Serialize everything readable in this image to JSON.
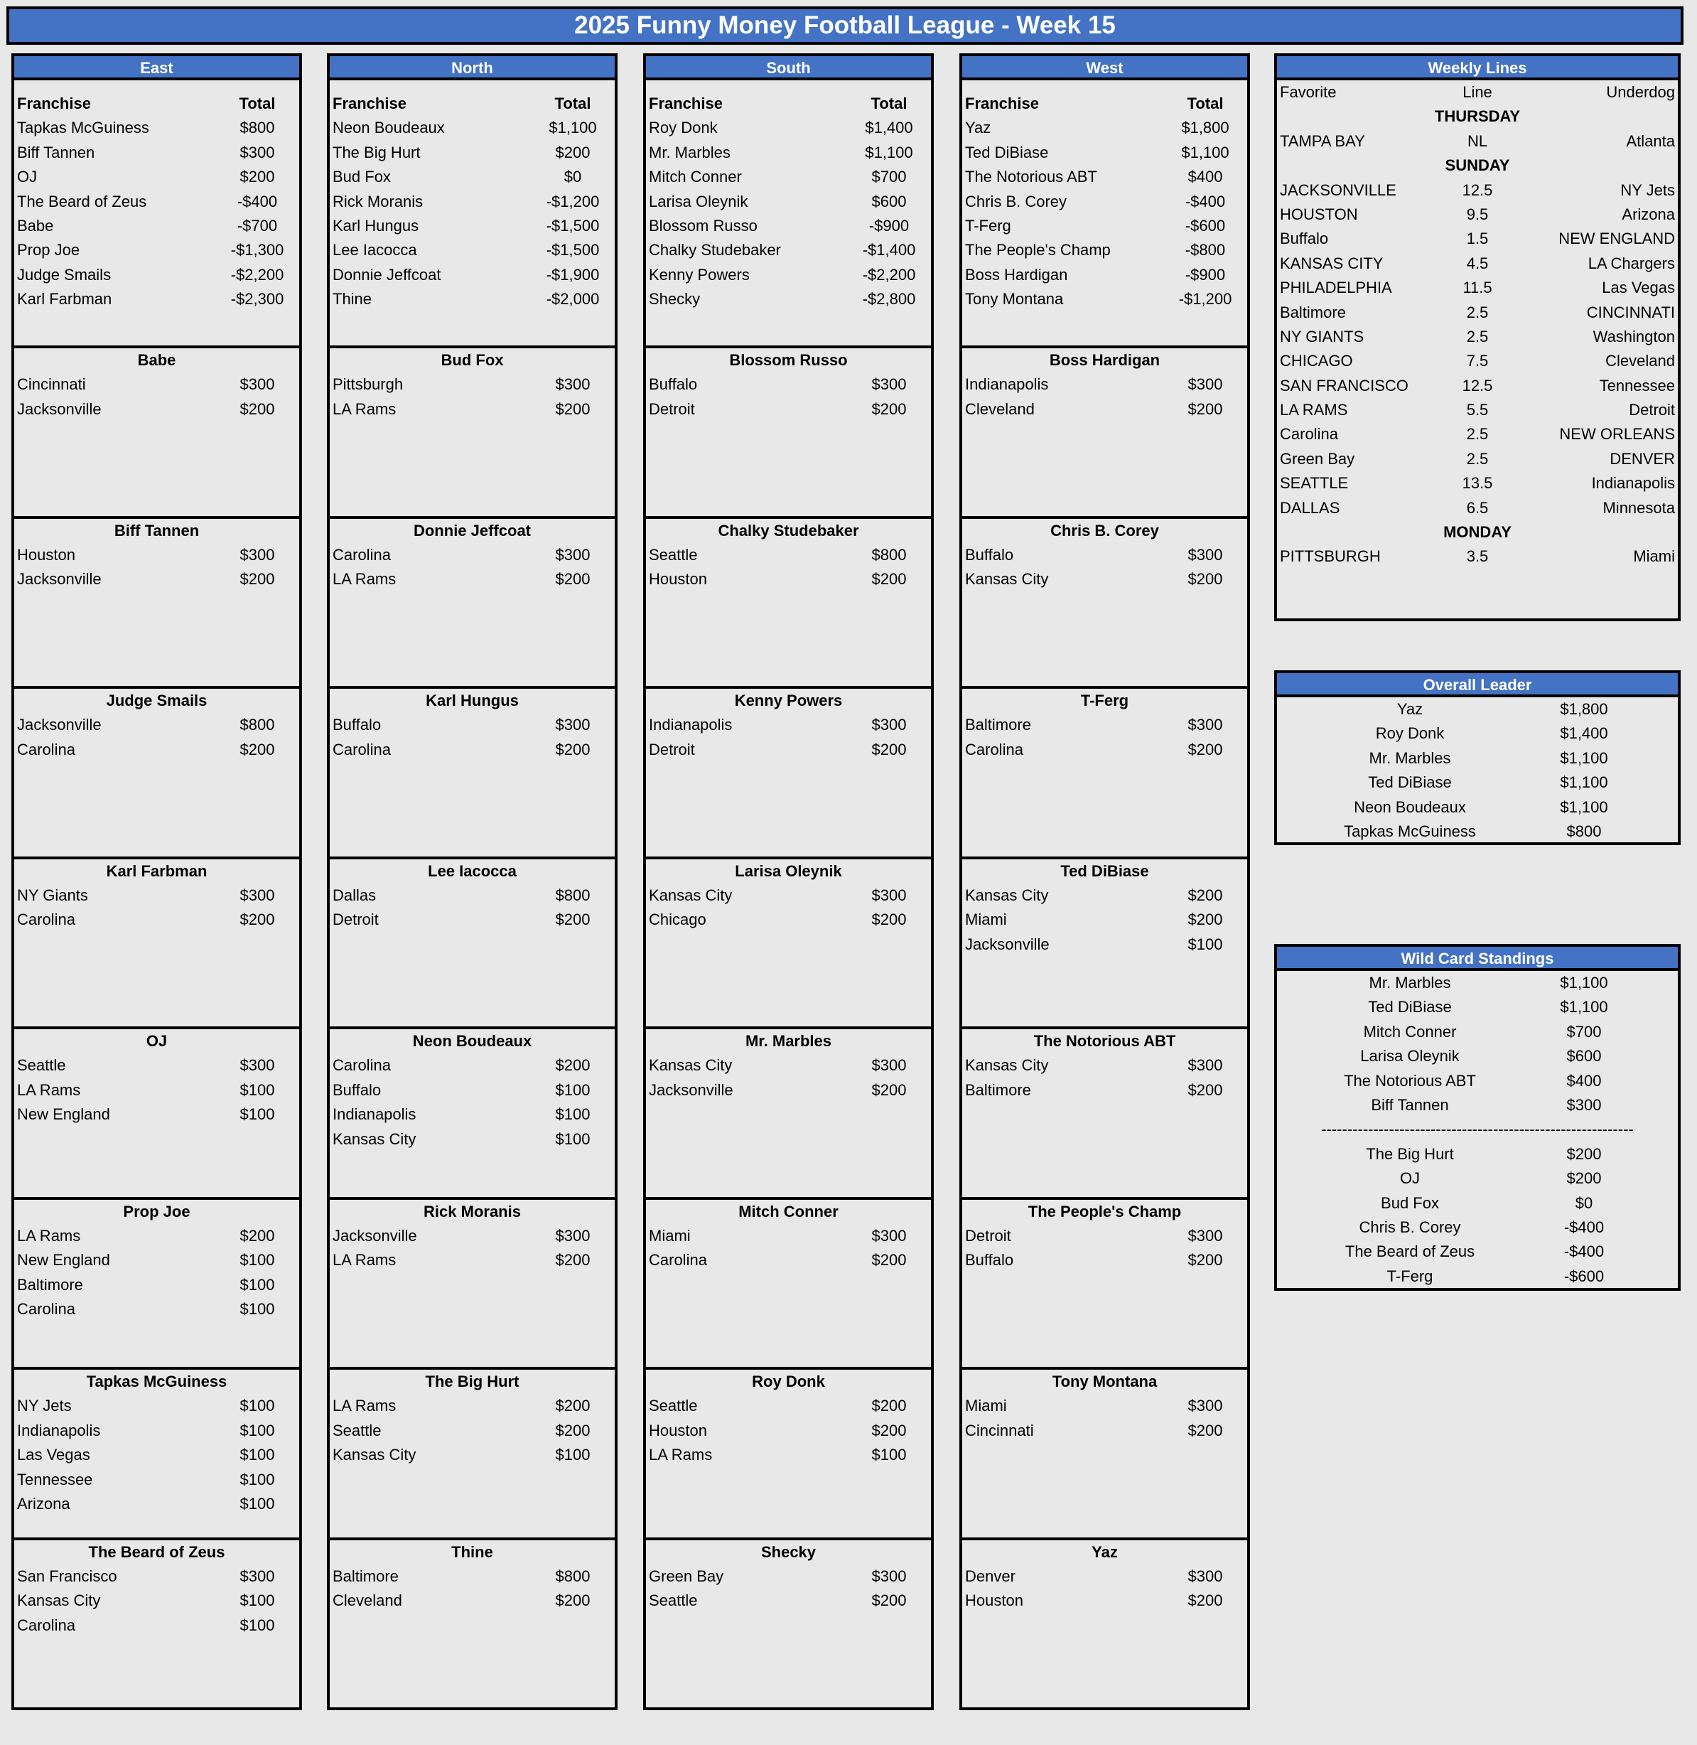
{
  "title": "2025 Funny Money Football League - Week 15",
  "colors": {
    "header_blue": "#4472c4",
    "background": "#e8e8e8",
    "border": "#000000"
  },
  "standings_headers": {
    "franchise": "Franchise",
    "total": "Total"
  },
  "divisions": [
    {
      "name": "East",
      "standings": [
        [
          "Tapkas McGuiness",
          "$800"
        ],
        [
          "Biff Tannen",
          "$300"
        ],
        [
          "OJ",
          "$200"
        ],
        [
          "The Beard of Zeus",
          "-$400"
        ],
        [
          "Babe",
          "-$700"
        ],
        [
          "Prop Joe",
          "-$1,300"
        ],
        [
          "Judge Smails",
          "-$2,200"
        ],
        [
          "Karl Farbman",
          "-$2,300"
        ]
      ],
      "teams": [
        {
          "name": "Babe",
          "picks": [
            [
              "Cincinnati",
              "$300"
            ],
            [
              "Jacksonville",
              "$200"
            ]
          ]
        },
        {
          "name": "Biff Tannen",
          "picks": [
            [
              "Houston",
              "$300"
            ],
            [
              "Jacksonville",
              "$200"
            ]
          ]
        },
        {
          "name": "Judge Smails",
          "picks": [
            [
              "Jacksonville",
              "$800"
            ],
            [
              "Carolina",
              "$200"
            ]
          ]
        },
        {
          "name": "Karl Farbman",
          "picks": [
            [
              "NY Giants",
              "$300"
            ],
            [
              "Carolina",
              "$200"
            ]
          ]
        },
        {
          "name": "OJ",
          "picks": [
            [
              "Seattle",
              "$300"
            ],
            [
              "LA Rams",
              "$100"
            ],
            [
              "New England",
              "$100"
            ]
          ]
        },
        {
          "name": "Prop Joe",
          "picks": [
            [
              "LA Rams",
              "$200"
            ],
            [
              "New England",
              "$100"
            ],
            [
              "Baltimore",
              "$100"
            ],
            [
              "Carolina",
              "$100"
            ]
          ]
        },
        {
          "name": "Tapkas McGuiness",
          "picks": [
            [
              "NY Jets",
              "$100"
            ],
            [
              "Indianapolis",
              "$100"
            ],
            [
              "Las Vegas",
              "$100"
            ],
            [
              "Tennessee",
              "$100"
            ],
            [
              "Arizona",
              "$100"
            ]
          ]
        },
        {
          "name": "The Beard of Zeus",
          "picks": [
            [
              "San Francisco",
              "$300"
            ],
            [
              "Kansas City",
              "$100"
            ],
            [
              "Carolina",
              "$100"
            ]
          ]
        }
      ]
    },
    {
      "name": "North",
      "standings": [
        [
          "Neon Boudeaux",
          "$1,100"
        ],
        [
          "The Big Hurt",
          "$200"
        ],
        [
          "Bud Fox",
          "$0"
        ],
        [
          "Rick Moranis",
          "-$1,200"
        ],
        [
          "Karl Hungus",
          "-$1,500"
        ],
        [
          "Lee Iacocca",
          "-$1,500"
        ],
        [
          "Donnie Jeffcoat",
          "-$1,900"
        ],
        [
          "Thine",
          "-$2,000"
        ]
      ],
      "teams": [
        {
          "name": "Bud Fox",
          "picks": [
            [
              "Pittsburgh",
              "$300"
            ],
            [
              "LA Rams",
              "$200"
            ]
          ]
        },
        {
          "name": "Donnie Jeffcoat",
          "picks": [
            [
              "Carolina",
              "$300"
            ],
            [
              "LA Rams",
              "$200"
            ]
          ]
        },
        {
          "name": "Karl Hungus",
          "picks": [
            [
              "Buffalo",
              "$300"
            ],
            [
              "Carolina",
              "$200"
            ]
          ]
        },
        {
          "name": "Lee Iacocca",
          "picks": [
            [
              "Dallas",
              "$800"
            ],
            [
              "Detroit",
              "$200"
            ]
          ]
        },
        {
          "name": "Neon Boudeaux",
          "picks": [
            [
              "Carolina",
              "$200"
            ],
            [
              "Buffalo",
              "$100"
            ],
            [
              "Indianapolis",
              "$100"
            ],
            [
              "Kansas City",
              "$100"
            ]
          ]
        },
        {
          "name": "Rick Moranis",
          "picks": [
            [
              "Jacksonville",
              "$300"
            ],
            [
              "LA Rams",
              "$200"
            ]
          ]
        },
        {
          "name": "The Big Hurt",
          "picks": [
            [
              "LA Rams",
              "$200"
            ],
            [
              "Seattle",
              "$200"
            ],
            [
              "Kansas City",
              "$100"
            ]
          ]
        },
        {
          "name": "Thine",
          "picks": [
            [
              "Baltimore",
              "$800"
            ],
            [
              "Cleveland",
              "$200"
            ]
          ]
        }
      ]
    },
    {
      "name": "South",
      "standings": [
        [
          "Roy Donk",
          "$1,400"
        ],
        [
          "Mr. Marbles",
          "$1,100"
        ],
        [
          "Mitch Conner",
          "$700"
        ],
        [
          "Larisa Oleynik",
          "$600"
        ],
        [
          "Blossom Russo",
          "-$900"
        ],
        [
          "Chalky Studebaker",
          "-$1,400"
        ],
        [
          "Kenny Powers",
          "-$2,200"
        ],
        [
          "Shecky",
          "-$2,800"
        ]
      ],
      "teams": [
        {
          "name": "Blossom Russo",
          "picks": [
            [
              "Buffalo",
              "$300"
            ],
            [
              "Detroit",
              "$200"
            ]
          ]
        },
        {
          "name": "Chalky Studebaker",
          "picks": [
            [
              "Seattle",
              "$800"
            ],
            [
              "Houston",
              "$200"
            ]
          ]
        },
        {
          "name": "Kenny Powers",
          "picks": [
            [
              "Indianapolis",
              "$300"
            ],
            [
              "Detroit",
              "$200"
            ]
          ]
        },
        {
          "name": "Larisa Oleynik",
          "picks": [
            [
              "Kansas City",
              "$300"
            ],
            [
              "Chicago",
              "$200"
            ]
          ]
        },
        {
          "name": "Mr. Marbles",
          "picks": [
            [
              "Kansas City",
              "$300"
            ],
            [
              "Jacksonville",
              "$200"
            ]
          ]
        },
        {
          "name": "Mitch Conner",
          "picks": [
            [
              "Miami",
              "$300"
            ],
            [
              "Carolina",
              "$200"
            ]
          ]
        },
        {
          "name": "Roy Donk",
          "picks": [
            [
              "Seattle",
              "$200"
            ],
            [
              "Houston",
              "$200"
            ],
            [
              "LA Rams",
              "$100"
            ]
          ]
        },
        {
          "name": "Shecky",
          "picks": [
            [
              "Green Bay",
              "$300"
            ],
            [
              "Seattle",
              "$200"
            ]
          ]
        }
      ]
    },
    {
      "name": "West",
      "standings": [
        [
          "Yaz",
          "$1,800"
        ],
        [
          "Ted DiBiase",
          "$1,100"
        ],
        [
          "The Notorious ABT",
          "$400"
        ],
        [
          "Chris B. Corey",
          "-$400"
        ],
        [
          "T-Ferg",
          "-$600"
        ],
        [
          "The People's Champ",
          "-$800"
        ],
        [
          "Boss Hardigan",
          "-$900"
        ],
        [
          "Tony Montana",
          "-$1,200"
        ]
      ],
      "teams": [
        {
          "name": "Boss Hardigan",
          "picks": [
            [
              "Indianapolis",
              "$300"
            ],
            [
              "Cleveland",
              "$200"
            ]
          ]
        },
        {
          "name": "Chris B. Corey",
          "picks": [
            [
              "Buffalo",
              "$300"
            ],
            [
              "Kansas City",
              "$200"
            ]
          ]
        },
        {
          "name": "T-Ferg",
          "picks": [
            [
              "Baltimore",
              "$300"
            ],
            [
              "Carolina",
              "$200"
            ]
          ]
        },
        {
          "name": "Ted DiBiase",
          "picks": [
            [
              "Kansas City",
              "$200"
            ],
            [
              "Miami",
              "$200"
            ],
            [
              "Jacksonville",
              "$100"
            ]
          ]
        },
        {
          "name": "The Notorious ABT",
          "picks": [
            [
              "Kansas City",
              "$300"
            ],
            [
              "Baltimore",
              "$200"
            ]
          ]
        },
        {
          "name": "The People's Champ",
          "picks": [
            [
              "Detroit",
              "$300"
            ],
            [
              "Buffalo",
              "$200"
            ]
          ]
        },
        {
          "name": "Tony Montana",
          "picks": [
            [
              "Miami",
              "$300"
            ],
            [
              "Cincinnati",
              "$200"
            ]
          ]
        },
        {
          "name": "Yaz",
          "picks": [
            [
              "Denver",
              "$300"
            ],
            [
              "Houston",
              "$200"
            ]
          ]
        }
      ]
    }
  ],
  "weekly_lines": {
    "title": "Weekly Lines",
    "headers": {
      "favorite": "Favorite",
      "line": "Line",
      "underdog": "Underdog"
    },
    "days": [
      {
        "day": "THURSDAY",
        "games": [
          [
            "TAMPA BAY",
            "NL",
            "Atlanta"
          ]
        ]
      },
      {
        "day": "SUNDAY",
        "games": [
          [
            "JACKSONVILLE",
            "12.5",
            "NY Jets"
          ],
          [
            "HOUSTON",
            "9.5",
            "Arizona"
          ],
          [
            "Buffalo",
            "1.5",
            "NEW ENGLAND"
          ],
          [
            "KANSAS CITY",
            "4.5",
            "LA Chargers"
          ],
          [
            "PHILADELPHIA",
            "11.5",
            "Las Vegas"
          ],
          [
            "Baltimore",
            "2.5",
            "CINCINNATI"
          ],
          [
            "NY GIANTS",
            "2.5",
            "Washington"
          ],
          [
            "CHICAGO",
            "7.5",
            "Cleveland"
          ],
          [
            "SAN FRANCISCO",
            "12.5",
            "Tennessee"
          ],
          [
            "LA RAMS",
            "5.5",
            "Detroit"
          ],
          [
            "Carolina",
            "2.5",
            "NEW ORLEANS"
          ],
          [
            "Green Bay",
            "2.5",
            "DENVER"
          ],
          [
            "SEATTLE",
            "13.5",
            "Indianapolis"
          ],
          [
            "DALLAS",
            "6.5",
            "Minnesota"
          ]
        ]
      },
      {
        "day": "MONDAY",
        "games": [
          [
            "PITTSBURGH",
            "3.5",
            "Miami"
          ]
        ]
      }
    ]
  },
  "overall_leader": {
    "title": "Overall Leader",
    "rows": [
      [
        "Yaz",
        "$1,800"
      ],
      [
        "Roy Donk",
        "$1,400"
      ],
      [
        "Mr. Marbles",
        "$1,100"
      ],
      [
        "Ted DiBiase",
        "$1,100"
      ],
      [
        "Neon Boudeaux",
        "$1,100"
      ],
      [
        "Tapkas McGuiness",
        "$800"
      ]
    ]
  },
  "wild_card": {
    "title": "Wild Card Standings",
    "above": [
      [
        "Mr. Marbles",
        "$1,100"
      ],
      [
        "Ted DiBiase",
        "$1,100"
      ],
      [
        "Mitch Conner",
        "$700"
      ],
      [
        "Larisa Oleynik",
        "$600"
      ],
      [
        "The Notorious ABT",
        "$400"
      ],
      [
        "Biff Tannen",
        "$300"
      ]
    ],
    "separator": "------------------------------------------------------------",
    "below": [
      [
        "The Big Hurt",
        "$200"
      ],
      [
        "OJ",
        "$200"
      ],
      [
        "Bud Fox",
        "$0"
      ],
      [
        "Chris B. Corey",
        "-$400"
      ],
      [
        "The Beard of Zeus",
        "-$400"
      ],
      [
        "T-Ferg",
        "-$600"
      ]
    ]
  }
}
